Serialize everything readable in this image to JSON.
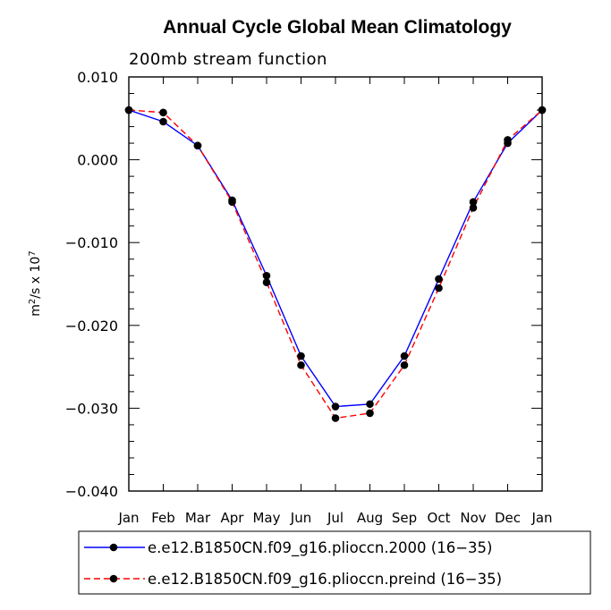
{
  "chart_data": {
    "type": "line",
    "title": "Annual Cycle Global Mean Climatology",
    "subtitle": "200mb stream function",
    "ylabel": "m²/s x 10⁷",
    "ylabel_parts": {
      "base": "m",
      "sup1": "2",
      "mid": "/s x 10",
      "sup2": "7"
    },
    "xlabel": "",
    "categories": [
      "Jan",
      "Feb",
      "Mar",
      "Apr",
      "May",
      "Jun",
      "Jul",
      "Aug",
      "Sep",
      "Oct",
      "Nov",
      "Dec",
      "Jan"
    ],
    "ylim": [
      -0.04,
      0.01
    ],
    "yticks": [
      0.01,
      0.0,
      -0.01,
      -0.02,
      -0.03,
      -0.04
    ],
    "ytick_labels": [
      "0.010",
      "0.000",
      "−0.010",
      "−0.020",
      "−0.030",
      "−0.040"
    ],
    "grid": false,
    "legend_position": "bottom",
    "series": [
      {
        "name": "e.e12.B1850CN.f09_g16.plioccn.2000 (16−35)",
        "color": "#0000ff",
        "dash": "solid",
        "values": [
          0.006,
          0.0046,
          0.0017,
          -0.0049,
          -0.014,
          -0.0237,
          -0.0298,
          -0.0295,
          -0.0237,
          -0.0144,
          -0.0051,
          0.002,
          0.006
        ]
      },
      {
        "name": "e.e12.B1850CN.f09_g16.plioccn.preind (16−35)",
        "color": "#ff0000",
        "dash": "dashed",
        "values": [
          0.006,
          0.0057,
          0.0017,
          -0.0051,
          -0.0148,
          -0.0248,
          -0.0312,
          -0.0306,
          -0.0248,
          -0.0155,
          -0.0058,
          0.0024,
          0.006
        ]
      }
    ]
  }
}
